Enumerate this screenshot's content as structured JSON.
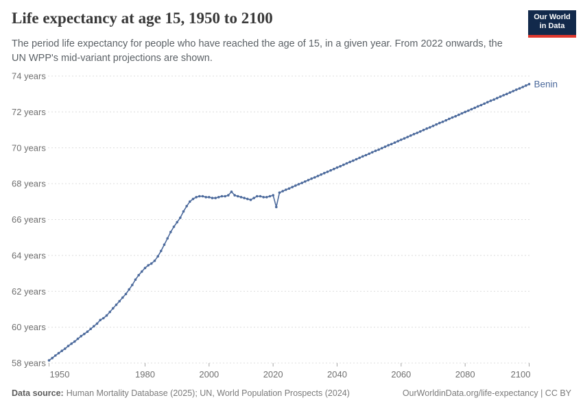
{
  "header": {
    "title": "Life expectancy at age 15, 1950 to 2100",
    "subtitle": "The period life expectancy for people who have reached the age of 15, in a given year. From 2022 onwards, the UN WPP's mid-variant projections are shown.",
    "logo": {
      "line1": "Our World",
      "line2": "in Data"
    }
  },
  "footer": {
    "datasource_label": "Data source:",
    "datasource_text": "Human Mortality Database (2025); UN, World Population Prospects (2024)",
    "link": "OurWorldinData.org/life-expectancy | CC BY"
  },
  "colors": {
    "series": "#4C6A9C",
    "grid": "#dcdcdc",
    "axis_text": "#6e6e6e",
    "tick": "#a5a5a5",
    "logo_bg": "#12294b",
    "logo_accent": "#e0382e"
  },
  "chart_data": {
    "type": "line",
    "title": "Life expectancy at age 15, 1950 to 2100",
    "entity_label": "Benin",
    "xlabel": "",
    "ylabel": "",
    "xlim": [
      1950,
      2100
    ],
    "ylim": [
      58,
      74
    ],
    "grid": "horizontal-dashed",
    "legend_position": "end-of-line",
    "projection_from_year": 2022,
    "xticks": [
      1950,
      1980,
      2000,
      2020,
      2040,
      2060,
      2080,
      2100
    ],
    "yticks": [
      {
        "value": 74,
        "label": "74 years"
      },
      {
        "value": 72,
        "label": "72 years"
      },
      {
        "value": 70,
        "label": "70 years"
      },
      {
        "value": 68,
        "label": "68 years"
      },
      {
        "value": 66,
        "label": "66 years"
      },
      {
        "value": 64,
        "label": "64 years"
      },
      {
        "value": 62,
        "label": "62 years"
      },
      {
        "value": 60,
        "label": "60 years"
      },
      {
        "value": 58,
        "label": "58 years"
      }
    ],
    "series": [
      {
        "name": "Benin",
        "color": "#4C6A9C",
        "years": [
          1950,
          1951,
          1952,
          1953,
          1954,
          1955,
          1956,
          1957,
          1958,
          1959,
          1960,
          1961,
          1962,
          1963,
          1964,
          1965,
          1966,
          1967,
          1968,
          1969,
          1970,
          1971,
          1972,
          1973,
          1974,
          1975,
          1976,
          1977,
          1978,
          1979,
          1980,
          1981,
          1982,
          1983,
          1984,
          1985,
          1986,
          1987,
          1988,
          1989,
          1990,
          1991,
          1992,
          1993,
          1994,
          1995,
          1996,
          1997,
          1998,
          1999,
          2000,
          2001,
          2002,
          2003,
          2004,
          2005,
          2006,
          2007,
          2008,
          2009,
          2010,
          2011,
          2012,
          2013,
          2014,
          2015,
          2016,
          2017,
          2018,
          2019,
          2020,
          2021,
          2022,
          2023,
          2024,
          2025,
          2026,
          2027,
          2028,
          2029,
          2030,
          2031,
          2032,
          2033,
          2034,
          2035,
          2036,
          2037,
          2038,
          2039,
          2040,
          2041,
          2042,
          2043,
          2044,
          2045,
          2046,
          2047,
          2048,
          2049,
          2050,
          2051,
          2052,
          2053,
          2054,
          2055,
          2056,
          2057,
          2058,
          2059,
          2060,
          2061,
          2062,
          2063,
          2064,
          2065,
          2066,
          2067,
          2068,
          2069,
          2070,
          2071,
          2072,
          2073,
          2074,
          2075,
          2076,
          2077,
          2078,
          2079,
          2080,
          2081,
          2082,
          2083,
          2084,
          2085,
          2086,
          2087,
          2088,
          2089,
          2090,
          2091,
          2092,
          2093,
          2094,
          2095,
          2096,
          2097,
          2098,
          2099,
          2100
        ],
        "values": [
          58.15,
          58.28,
          58.42,
          58.55,
          58.68,
          58.8,
          58.95,
          59.08,
          59.2,
          59.35,
          59.5,
          59.62,
          59.75,
          59.9,
          60.05,
          60.2,
          60.4,
          60.5,
          60.65,
          60.85,
          61.05,
          61.25,
          61.45,
          61.65,
          61.85,
          62.1,
          62.35,
          62.65,
          62.9,
          63.1,
          63.3,
          63.45,
          63.55,
          63.7,
          63.95,
          64.25,
          64.6,
          64.95,
          65.3,
          65.6,
          65.85,
          66.1,
          66.45,
          66.75,
          67.0,
          67.15,
          67.25,
          67.3,
          67.3,
          67.25,
          67.25,
          67.2,
          67.2,
          67.25,
          67.3,
          67.3,
          67.35,
          67.55,
          67.35,
          67.3,
          67.25,
          67.2,
          67.15,
          67.1,
          67.2,
          67.3,
          67.3,
          67.25,
          67.25,
          67.3,
          67.35,
          66.7,
          67.5,
          67.58,
          67.66,
          67.73,
          67.81,
          67.89,
          67.97,
          68.04,
          68.12,
          68.2,
          68.28,
          68.35,
          68.43,
          68.51,
          68.59,
          68.66,
          68.74,
          68.82,
          68.9,
          68.97,
          69.05,
          69.13,
          69.21,
          69.28,
          69.36,
          69.44,
          69.52,
          69.59,
          69.67,
          69.75,
          69.83,
          69.9,
          69.98,
          70.06,
          70.14,
          70.21,
          70.29,
          70.37,
          70.45,
          70.52,
          70.6,
          70.68,
          70.76,
          70.83,
          70.91,
          70.99,
          71.07,
          71.14,
          71.22,
          71.3,
          71.38,
          71.45,
          71.53,
          71.61,
          71.69,
          71.76,
          71.84,
          71.92,
          72.0,
          72.07,
          72.15,
          72.23,
          72.31,
          72.38,
          72.46,
          72.54,
          72.62,
          72.69,
          72.77,
          72.85,
          72.93,
          73.0,
          73.08,
          73.16,
          73.24,
          73.31,
          73.39,
          73.47,
          73.55
        ]
      }
    ]
  }
}
